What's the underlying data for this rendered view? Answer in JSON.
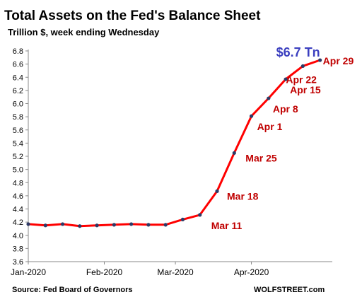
{
  "chart_data": {
    "type": "line",
    "title": "Total Assets on the Fed's Balance Sheet",
    "subtitle": "Trillion $, week ending Wednesday",
    "y_ticks": [
      "6.8",
      "6.6",
      "6.4",
      "6.2",
      "6.0",
      "5.8",
      "5.6",
      "5.4",
      "5.2",
      "5.0",
      "4.8",
      "4.6",
      "4.4",
      "4.2",
      "4.0",
      "3.8",
      "3.6"
    ],
    "ylim": [
      3.6,
      6.8
    ],
    "x_ticks": [
      "Jan-2020",
      "Feb-2020",
      "Mar-2020",
      "Apr-2020"
    ],
    "x": [
      "2020-01-01",
      "2020-01-08",
      "2020-01-15",
      "2020-01-22",
      "2020-01-29",
      "2020-02-05",
      "2020-02-12",
      "2020-02-19",
      "2020-02-26",
      "2020-03-04",
      "2020-03-11",
      "2020-03-18",
      "2020-03-25",
      "2020-04-01",
      "2020-04-08",
      "2020-04-15",
      "2020-04-22",
      "2020-04-29"
    ],
    "series": [
      {
        "values": [
          4.17,
          4.15,
          4.17,
          4.14,
          4.15,
          4.16,
          4.17,
          4.16,
          4.16,
          4.24,
          4.31,
          4.67,
          5.25,
          5.81,
          6.08,
          6.37,
          6.57,
          6.66
        ],
        "color": "#ff0000",
        "marker_color": "#2e3a66"
      }
    ],
    "annotations": [
      {
        "label": "Mar 11",
        "x": "2020-03-11"
      },
      {
        "label": "Mar 18",
        "x": "2020-03-18"
      },
      {
        "label": "Mar 25",
        "x": "2020-03-25"
      },
      {
        "label": "Apr 1",
        "x": "2020-04-01"
      },
      {
        "label": "Apr 8",
        "x": "2020-04-08"
      },
      {
        "label": "Apr 15",
        "x": "2020-04-15"
      },
      {
        "label": "Apr 22",
        "x": "2020-04-22"
      },
      {
        "label": "Apr 29",
        "x": "2020-04-29"
      }
    ],
    "callout": {
      "label": "$6.7 Tn",
      "color": "#3b3fbf"
    },
    "annotation_color": "#c00000",
    "grid": false,
    "source": "Source: Fed Board of Governors",
    "brand": "WOLFSTREET.com"
  }
}
